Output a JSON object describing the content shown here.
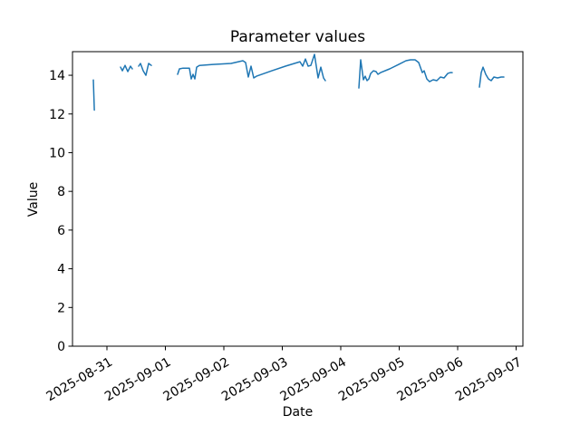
{
  "figure": {
    "background_color": "#ffffff"
  },
  "chart_data": {
    "type": "line",
    "title": "Parameter values",
    "xlabel": "Date",
    "ylabel": "Value",
    "grid": false,
    "line_color": "#1f77b4",
    "axis_color": "#000000",
    "x_tick_labels": [
      "2025-08-31",
      "2025-09-01",
      "2025-09-02",
      "2025-09-03",
      "2025-09-04",
      "2025-09-05",
      "2025-09-06",
      "2025-09-07"
    ],
    "x_tick_days": [
      0,
      1,
      2,
      3,
      4,
      5,
      6,
      7
    ],
    "x_tick_rotation_deg": 30,
    "y_ticks": [
      0,
      2,
      4,
      6,
      8,
      10,
      12,
      14
    ],
    "xlim_days": [
      -0.589,
      7.116
    ],
    "ylim": [
      0,
      15.22
    ],
    "x_units": "days since 2025-08-31",
    "series": [
      {
        "name": "Parameter values",
        "segments": [
          [
            [
              -0.233,
              13.76
            ],
            [
              -0.215,
              12.2
            ]
          ],
          [
            [
              0.233,
              14.42
            ],
            [
              0.264,
              14.23
            ],
            [
              0.31,
              14.51
            ],
            [
              0.357,
              14.19
            ],
            [
              0.403,
              14.47
            ],
            [
              0.434,
              14.33
            ]
          ],
          [
            [
              0.543,
              14.47
            ],
            [
              0.574,
              14.61
            ],
            [
              0.62,
              14.23
            ],
            [
              0.667,
              14.0
            ],
            [
              0.713,
              14.61
            ],
            [
              0.76,
              14.51
            ]
          ],
          [
            [
              1.209,
              14.05
            ],
            [
              1.24,
              14.33
            ],
            [
              1.302,
              14.37
            ],
            [
              1.411,
              14.37
            ],
            [
              1.442,
              13.81
            ],
            [
              1.473,
              14.05
            ],
            [
              1.504,
              13.81
            ],
            [
              1.535,
              14.42
            ],
            [
              1.581,
              14.51
            ],
            [
              1.814,
              14.56
            ],
            [
              2.124,
              14.61
            ],
            [
              2.326,
              14.75
            ],
            [
              2.372,
              14.66
            ],
            [
              2.419,
              13.91
            ],
            [
              2.465,
              14.47
            ],
            [
              2.512,
              13.86
            ],
            [
              2.558,
              13.95
            ],
            [
              2.822,
              14.23
            ],
            [
              3.054,
              14.47
            ],
            [
              3.302,
              14.7
            ],
            [
              3.349,
              14.47
            ],
            [
              3.395,
              14.84
            ],
            [
              3.442,
              14.47
            ],
            [
              3.488,
              14.51
            ],
            [
              3.55,
              15.08
            ],
            [
              3.612,
              13.86
            ],
            [
              3.659,
              14.42
            ],
            [
              3.705,
              13.86
            ],
            [
              3.736,
              13.72
            ]
          ],
          [
            [
              4.31,
              13.34
            ],
            [
              4.341,
              14.8
            ],
            [
              4.388,
              13.77
            ],
            [
              4.419,
              13.95
            ],
            [
              4.45,
              13.72
            ],
            [
              4.481,
              13.81
            ],
            [
              4.512,
              14.09
            ],
            [
              4.558,
              14.23
            ],
            [
              4.605,
              14.19
            ],
            [
              4.636,
              14.05
            ],
            [
              4.682,
              14.14
            ],
            [
              4.837,
              14.33
            ],
            [
              4.992,
              14.56
            ],
            [
              5.116,
              14.75
            ],
            [
              5.194,
              14.8
            ],
            [
              5.271,
              14.8
            ],
            [
              5.333,
              14.66
            ],
            [
              5.395,
              14.14
            ],
            [
              5.426,
              14.23
            ],
            [
              5.473,
              13.81
            ],
            [
              5.519,
              13.67
            ],
            [
              5.581,
              13.77
            ],
            [
              5.643,
              13.72
            ],
            [
              5.705,
              13.91
            ],
            [
              5.767,
              13.86
            ],
            [
              5.829,
              14.09
            ],
            [
              5.876,
              14.14
            ],
            [
              5.907,
              14.14
            ]
          ],
          [
            [
              6.372,
              13.39
            ],
            [
              6.403,
              14.14
            ],
            [
              6.434,
              14.42
            ],
            [
              6.481,
              14.05
            ],
            [
              6.527,
              13.81
            ],
            [
              6.574,
              13.72
            ],
            [
              6.62,
              13.91
            ],
            [
              6.682,
              13.86
            ],
            [
              6.744,
              13.91
            ],
            [
              6.791,
              13.91
            ]
          ]
        ]
      }
    ]
  }
}
